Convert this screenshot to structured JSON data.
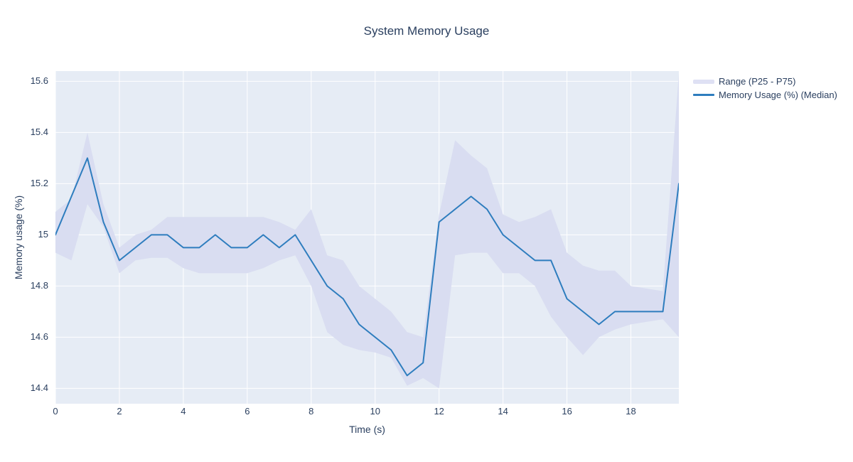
{
  "legend": {
    "items": [
      {
        "label": "Range (P25 - P75)",
        "swatch": "band"
      },
      {
        "label": "Memory Usage (%) (Median)",
        "swatch": "line"
      }
    ]
  },
  "chart_data": {
    "type": "line",
    "title": "System Memory Usage",
    "xlabel": "Time (s)",
    "ylabel": "Memory usage (%)",
    "x": [
      0,
      0.5,
      1,
      1.5,
      2,
      2.5,
      3,
      3.5,
      4,
      4.5,
      5,
      5.5,
      6,
      6.5,
      7,
      7.5,
      8,
      8.5,
      9,
      9.5,
      10,
      10.5,
      11,
      11.5,
      12,
      12.5,
      13,
      13.5,
      14,
      14.5,
      15,
      15.5,
      16,
      16.5,
      17,
      17.5,
      18,
      18.5,
      19,
      19.5
    ],
    "series": [
      {
        "name": "Range (P25 - P75)",
        "type": "band",
        "p25": [
          14.93,
          14.9,
          15.12,
          15.03,
          14.85,
          14.9,
          14.91,
          14.91,
          14.87,
          14.85,
          14.85,
          14.85,
          14.85,
          14.87,
          14.9,
          14.92,
          14.8,
          14.62,
          14.57,
          14.55,
          14.54,
          14.52,
          14.41,
          14.44,
          14.4,
          14.92,
          14.93,
          14.93,
          14.85,
          14.85,
          14.8,
          14.68,
          14.6,
          14.53,
          14.6,
          14.63,
          14.65,
          14.66,
          14.67,
          14.6
        ],
        "p75": [
          15.09,
          15.14,
          15.4,
          15.12,
          14.95,
          15.0,
          15.02,
          15.07,
          15.07,
          15.07,
          15.07,
          15.07,
          15.07,
          15.07,
          15.05,
          15.02,
          15.1,
          14.92,
          14.9,
          14.8,
          14.75,
          14.7,
          14.62,
          14.6,
          15.08,
          15.37,
          15.31,
          15.26,
          15.08,
          15.05,
          15.07,
          15.1,
          14.93,
          14.88,
          14.86,
          14.86,
          14.8,
          14.79,
          14.78,
          15.63
        ]
      },
      {
        "name": "Memory Usage (%) (Median)",
        "type": "line",
        "values": [
          15.0,
          15.15,
          15.3,
          15.05,
          14.9,
          14.95,
          15.0,
          15.0,
          14.95,
          14.95,
          15.0,
          14.95,
          14.95,
          15.0,
          14.95,
          15.0,
          14.9,
          14.8,
          14.75,
          14.65,
          14.6,
          14.55,
          14.45,
          14.5,
          15.05,
          15.1,
          15.15,
          15.1,
          15.0,
          14.95,
          14.9,
          14.9,
          14.75,
          14.7,
          14.65,
          14.7,
          14.7,
          14.7,
          14.7,
          15.2
        ]
      }
    ],
    "xticks": [
      "0",
      "2",
      "4",
      "6",
      "8",
      "10",
      "12",
      "14",
      "16",
      "18"
    ],
    "xtick_values": [
      0,
      2,
      4,
      6,
      8,
      10,
      12,
      14,
      16,
      18
    ],
    "yticks": [
      "14.4",
      "14.6",
      "14.8",
      "15",
      "15.2",
      "15.4",
      "15.6"
    ],
    "ytick_values": [
      14.4,
      14.6,
      14.8,
      15.0,
      15.2,
      15.4,
      15.6
    ],
    "xlim": [
      0,
      19.5
    ],
    "ylim": [
      14.34,
      15.64
    ],
    "grid": true,
    "legend_position": "right",
    "colors": {
      "plot_bg": "#e6ecf5",
      "grid": "#ffffff",
      "median_line": "#2e7dbe",
      "band_fill": "#d9ddf1",
      "band_legend": "#dfe1f4",
      "text": "#2a3f5f"
    }
  }
}
